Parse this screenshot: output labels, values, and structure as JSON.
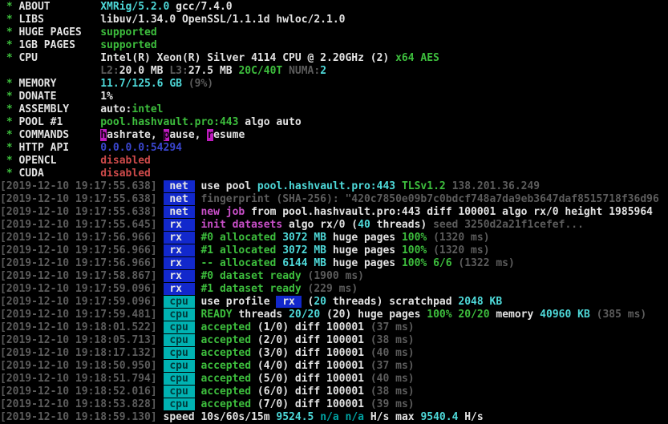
{
  "app_title": "XMRig 5.2.0 miner terminal output",
  "palette": {
    "background": "#000000",
    "white": "#E2E2E2",
    "green": "#3DBE3D",
    "cyan": "#4ED9D9",
    "dim_cyan": "#00A3A3",
    "red": "#CE4A4A",
    "magenta": "#C94FC9",
    "gray": "#5C5C5C",
    "blue": "#3A46CF",
    "hotkey_bg": "#BE1CBE",
    "net_badge_bg": "#1228CC",
    "cpu_badge_bg": "#00B2B2"
  },
  "lines": [
    {
      "name": "header-about",
      "segments": [
        {
          "t": " * ",
          "s": "g",
          "n": "bullet-star"
        },
        {
          "t": "ABOUT        ",
          "s": "w",
          "n": "field-label"
        },
        {
          "t": "XMRig/5.2.0",
          "s": "c"
        },
        {
          "t": " gcc/7.4.0",
          "s": "w"
        }
      ]
    },
    {
      "name": "header-libs",
      "segments": [
        {
          "t": " * ",
          "s": "g",
          "n": "bullet-star"
        },
        {
          "t": "LIBS         ",
          "s": "w",
          "n": "field-label"
        },
        {
          "t": "libuv/1.34.0 OpenSSL/1.1.1d hwloc/2.1.0",
          "s": "w"
        }
      ]
    },
    {
      "name": "header-huge-pages",
      "segments": [
        {
          "t": " * ",
          "s": "g",
          "n": "bullet-star"
        },
        {
          "t": "HUGE PAGES   ",
          "s": "w",
          "n": "field-label"
        },
        {
          "t": "supported",
          "s": "g",
          "n": "status-value"
        }
      ]
    },
    {
      "name": "header-1gb-pages",
      "segments": [
        {
          "t": " * ",
          "s": "g",
          "n": "bullet-star"
        },
        {
          "t": "1GB PAGES    ",
          "s": "w",
          "n": "field-label"
        },
        {
          "t": "supported",
          "s": "g",
          "n": "status-value"
        }
      ]
    },
    {
      "name": "header-cpu",
      "segments": [
        {
          "t": " * ",
          "s": "g",
          "n": "bullet-star"
        },
        {
          "t": "CPU          ",
          "s": "w",
          "n": "field-label"
        },
        {
          "t": "Intel(R) Xeon(R) Silver 4114 CPU @ 2.20GHz (2) ",
          "s": "w"
        },
        {
          "t": "x64 AES",
          "s": "g"
        }
      ]
    },
    {
      "name": "header-cpu-cache",
      "segments": [
        {
          "t": "                ",
          "s": "w"
        },
        {
          "t": "L2:",
          "s": "gray"
        },
        {
          "t": "20.0 MB ",
          "s": "w"
        },
        {
          "t": "L3:",
          "s": "gray"
        },
        {
          "t": "27.5 MB ",
          "s": "w"
        },
        {
          "t": "20C/40T ",
          "s": "g"
        },
        {
          "t": "NUMA:",
          "s": "gray"
        },
        {
          "t": "2",
          "s": "c"
        }
      ]
    },
    {
      "name": "header-memory",
      "segments": [
        {
          "t": " * ",
          "s": "g",
          "n": "bullet-star"
        },
        {
          "t": "MEMORY       ",
          "s": "w",
          "n": "field-label"
        },
        {
          "t": "11.7/125.6 GB ",
          "s": "c"
        },
        {
          "t": "(9%)",
          "s": "gray"
        }
      ]
    },
    {
      "name": "header-donate",
      "segments": [
        {
          "t": " * ",
          "s": "g",
          "n": "bullet-star"
        },
        {
          "t": "DONATE       ",
          "s": "w",
          "n": "field-label"
        },
        {
          "t": "1%",
          "s": "w"
        }
      ]
    },
    {
      "name": "header-assembly",
      "segments": [
        {
          "t": " * ",
          "s": "g",
          "n": "bullet-star"
        },
        {
          "t": "ASSEMBLY     ",
          "s": "w",
          "n": "field-label"
        },
        {
          "t": "auto:",
          "s": "w"
        },
        {
          "t": "intel",
          "s": "g"
        }
      ]
    },
    {
      "name": "header-pool",
      "segments": [
        {
          "t": " * ",
          "s": "g",
          "n": "bullet-star"
        },
        {
          "t": "POOL #1      ",
          "s": "w",
          "n": "field-label"
        },
        {
          "t": "pool.hashvault.pro:443",
          "s": "g",
          "n": "pool-address"
        },
        {
          "t": " algo auto",
          "s": "w"
        }
      ]
    },
    {
      "name": "header-commands",
      "segments": [
        {
          "t": " * ",
          "s": "g",
          "n": "bullet-star"
        },
        {
          "t": "COMMANDS     ",
          "s": "w",
          "n": "field-label"
        },
        {
          "t": "h",
          "s": "hk",
          "n": "hotkey-highlight"
        },
        {
          "t": "ashrate, ",
          "s": "w"
        },
        {
          "t": "p",
          "s": "hk",
          "n": "hotkey-highlight"
        },
        {
          "t": "ause, ",
          "s": "w"
        },
        {
          "t": "r",
          "s": "hk",
          "n": "hotkey-highlight"
        },
        {
          "t": "esume",
          "s": "w"
        }
      ]
    },
    {
      "name": "header-http-api",
      "segments": [
        {
          "t": " * ",
          "s": "g",
          "n": "bullet-star"
        },
        {
          "t": "HTTP API     ",
          "s": "w",
          "n": "field-label"
        },
        {
          "t": "0.0.0.0:54294",
          "s": "blue",
          "n": "api-address"
        }
      ]
    },
    {
      "name": "header-opencl",
      "segments": [
        {
          "t": " * ",
          "s": "g",
          "n": "bullet-star"
        },
        {
          "t": "OPENCL       ",
          "s": "w",
          "n": "field-label"
        },
        {
          "t": "disabled",
          "s": "r",
          "n": "status-value"
        }
      ]
    },
    {
      "name": "header-cuda",
      "segments": [
        {
          "t": " * ",
          "s": "g",
          "n": "bullet-star"
        },
        {
          "t": "CUDA         ",
          "s": "w",
          "n": "field-label"
        },
        {
          "t": "disabled",
          "s": "r",
          "n": "status-value"
        }
      ]
    },
    {
      "name": "log-use-pool",
      "segments": [
        {
          "t": "[2019-12-10 19:17:55.638]",
          "s": "gray",
          "n": "timestamp"
        },
        {
          "t": " ",
          "s": "w"
        },
        {
          "t": " net ",
          "s": "bnet",
          "n": "net-badge"
        },
        {
          "t": " ",
          "s": "w"
        },
        {
          "t": "use pool ",
          "s": "w"
        },
        {
          "t": "pool.hashvault.pro:443 ",
          "s": "c",
          "n": "pool-address"
        },
        {
          "t": "TLSv1.2 ",
          "s": "g"
        },
        {
          "t": "138.201.36.249",
          "s": "gray",
          "n": "pool-ip"
        }
      ]
    },
    {
      "name": "log-fingerprint",
      "segments": [
        {
          "t": "[2019-12-10 19:17:55.638]",
          "s": "gray",
          "n": "timestamp"
        },
        {
          "t": " ",
          "s": "w"
        },
        {
          "t": " net ",
          "s": "bnet",
          "n": "net-badge"
        },
        {
          "t": " ",
          "s": "w"
        },
        {
          "t": "fingerprint (SHA-256): \"420c7850e09b7c0bdcf748a7da9eb3647daf8515718f36d96",
          "s": "gray",
          "n": "tls-fingerprint"
        }
      ]
    },
    {
      "name": "log-new-job",
      "segments": [
        {
          "t": "[2019-12-10 19:17:55.638]",
          "s": "gray",
          "n": "timestamp"
        },
        {
          "t": " ",
          "s": "w"
        },
        {
          "t": " net ",
          "s": "bnet",
          "n": "net-badge"
        },
        {
          "t": " ",
          "s": "w"
        },
        {
          "t": "new job",
          "s": "m"
        },
        {
          "t": " from pool.hashvault.pro:443 diff 100001 algo rx/0 height 1985964",
          "s": "w"
        }
      ]
    },
    {
      "name": "log-init-datasets",
      "segments": [
        {
          "t": "[2019-12-10 19:17:55.645]",
          "s": "gray",
          "n": "timestamp"
        },
        {
          "t": " ",
          "s": "w"
        },
        {
          "t": " rx  ",
          "s": "bnet",
          "n": "rx-badge"
        },
        {
          "t": " ",
          "s": "w"
        },
        {
          "t": "init datasets",
          "s": "m"
        },
        {
          "t": " algo rx/0 (",
          "s": "w"
        },
        {
          "t": "40",
          "s": "c"
        },
        {
          "t": " threads) ",
          "s": "w"
        },
        {
          "t": "seed 3250d2a21f1cefef...",
          "s": "gray",
          "n": "seed-value"
        }
      ]
    },
    {
      "name": "log-allocated-0",
      "segments": [
        {
          "t": "[2019-12-10 19:17:56.966]",
          "s": "gray",
          "n": "timestamp"
        },
        {
          "t": " ",
          "s": "w"
        },
        {
          "t": " rx  ",
          "s": "bnet",
          "n": "rx-badge"
        },
        {
          "t": " ",
          "s": "w"
        },
        {
          "t": "#0 allocated ",
          "s": "g"
        },
        {
          "t": "3072 MB",
          "s": "c"
        },
        {
          "t": " huge pages ",
          "s": "w"
        },
        {
          "t": "100% ",
          "s": "g"
        },
        {
          "t": "(1320 ms)",
          "s": "gray"
        }
      ]
    },
    {
      "name": "log-allocated-1",
      "segments": [
        {
          "t": "[2019-12-10 19:17:56.966]",
          "s": "gray",
          "n": "timestamp"
        },
        {
          "t": " ",
          "s": "w"
        },
        {
          "t": " rx  ",
          "s": "bnet",
          "n": "rx-badge"
        },
        {
          "t": " ",
          "s": "w"
        },
        {
          "t": "#1 allocated ",
          "s": "g"
        },
        {
          "t": "3072 MB",
          "s": "c"
        },
        {
          "t": " huge pages ",
          "s": "w"
        },
        {
          "t": "100% ",
          "s": "g"
        },
        {
          "t": "(1320 ms)",
          "s": "gray"
        }
      ]
    },
    {
      "name": "log-allocated-total",
      "segments": [
        {
          "t": "[2019-12-10 19:17:56.966]",
          "s": "gray",
          "n": "timestamp"
        },
        {
          "t": " ",
          "s": "w"
        },
        {
          "t": " rx  ",
          "s": "bnet",
          "n": "rx-badge"
        },
        {
          "t": " ",
          "s": "w"
        },
        {
          "t": "-- allocated ",
          "s": "g"
        },
        {
          "t": "6144 MB",
          "s": "c"
        },
        {
          "t": " huge pages ",
          "s": "w"
        },
        {
          "t": "100% 6/6 ",
          "s": "g"
        },
        {
          "t": "(1322 ms)",
          "s": "gray"
        }
      ]
    },
    {
      "name": "log-dataset-ready-0",
      "segments": [
        {
          "t": "[2019-12-10 19:17:58.867]",
          "s": "gray",
          "n": "timestamp"
        },
        {
          "t": " ",
          "s": "w"
        },
        {
          "t": " rx  ",
          "s": "bnet",
          "n": "rx-badge"
        },
        {
          "t": " ",
          "s": "w"
        },
        {
          "t": "#0 dataset ready ",
          "s": "g"
        },
        {
          "t": "(1900 ms)",
          "s": "gray"
        }
      ]
    },
    {
      "name": "log-dataset-ready-1",
      "segments": [
        {
          "t": "[2019-12-10 19:17:59.096]",
          "s": "gray",
          "n": "timestamp"
        },
        {
          "t": " ",
          "s": "w"
        },
        {
          "t": " rx  ",
          "s": "bnet",
          "n": "rx-badge"
        },
        {
          "t": " ",
          "s": "w"
        },
        {
          "t": "#1 dataset ready ",
          "s": "g"
        },
        {
          "t": "(229 ms)",
          "s": "gray"
        }
      ]
    },
    {
      "name": "log-use-profile",
      "segments": [
        {
          "t": "[2019-12-10 19:17:59.096]",
          "s": "gray",
          "n": "timestamp"
        },
        {
          "t": " ",
          "s": "w"
        },
        {
          "t": " cpu ",
          "s": "bcpu",
          "n": "cpu-badge"
        },
        {
          "t": " ",
          "s": "w"
        },
        {
          "t": "use profile ",
          "s": "w"
        },
        {
          "t": " rx ",
          "s": "brx",
          "n": "rx-profile-badge"
        },
        {
          "t": " (",
          "s": "w"
        },
        {
          "t": "20",
          "s": "c"
        },
        {
          "t": " threads) scratchpad ",
          "s": "w"
        },
        {
          "t": "2048 KB",
          "s": "c"
        }
      ]
    },
    {
      "name": "log-ready-threads",
      "segments": [
        {
          "t": "[2019-12-10 19:17:59.481]",
          "s": "gray",
          "n": "timestamp"
        },
        {
          "t": " ",
          "s": "w"
        },
        {
          "t": " cpu ",
          "s": "bcpu",
          "n": "cpu-badge"
        },
        {
          "t": " ",
          "s": "w"
        },
        {
          "t": "READY",
          "s": "g"
        },
        {
          "t": " threads ",
          "s": "w"
        },
        {
          "t": "20/20",
          "s": "c"
        },
        {
          "t": " (20) huge pages ",
          "s": "w"
        },
        {
          "t": "100% 20/20",
          "s": "g"
        },
        {
          "t": " memory ",
          "s": "w"
        },
        {
          "t": "40960 KB",
          "s": "c"
        },
        {
          "t": " ",
          "s": "w"
        },
        {
          "t": "(385 ms)",
          "s": "gray"
        }
      ]
    },
    {
      "name": "log-accepted-1",
      "segments": [
        {
          "t": "[2019-12-10 19:18:01.522]",
          "s": "gray",
          "n": "timestamp"
        },
        {
          "t": " ",
          "s": "w"
        },
        {
          "t": " cpu ",
          "s": "bcpu",
          "n": "cpu-badge"
        },
        {
          "t": " ",
          "s": "w"
        },
        {
          "t": "accepted",
          "s": "g"
        },
        {
          "t": " (1/0) diff 100001 ",
          "s": "w"
        },
        {
          "t": "(37 ms)",
          "s": "gray"
        }
      ]
    },
    {
      "name": "log-accepted-2",
      "segments": [
        {
          "t": "[2019-12-10 19:18:05.713]",
          "s": "gray",
          "n": "timestamp"
        },
        {
          "t": " ",
          "s": "w"
        },
        {
          "t": " cpu ",
          "s": "bcpu",
          "n": "cpu-badge"
        },
        {
          "t": " ",
          "s": "w"
        },
        {
          "t": "accepted",
          "s": "g"
        },
        {
          "t": " (2/0) diff 100001 ",
          "s": "w"
        },
        {
          "t": "(38 ms)",
          "s": "gray"
        }
      ]
    },
    {
      "name": "log-accepted-3",
      "segments": [
        {
          "t": "[2019-12-10 19:18:17.132]",
          "s": "gray",
          "n": "timestamp"
        },
        {
          "t": " ",
          "s": "w"
        },
        {
          "t": " cpu ",
          "s": "bcpu",
          "n": "cpu-badge"
        },
        {
          "t": " ",
          "s": "w"
        },
        {
          "t": "accepted",
          "s": "g"
        },
        {
          "t": " (3/0) diff 100001 ",
          "s": "w"
        },
        {
          "t": "(40 ms)",
          "s": "gray"
        }
      ]
    },
    {
      "name": "log-accepted-4",
      "segments": [
        {
          "t": "[2019-12-10 19:18:50.950]",
          "s": "gray",
          "n": "timestamp"
        },
        {
          "t": " ",
          "s": "w"
        },
        {
          "t": " cpu ",
          "s": "bcpu",
          "n": "cpu-badge"
        },
        {
          "t": " ",
          "s": "w"
        },
        {
          "t": "accepted",
          "s": "g"
        },
        {
          "t": " (4/0) diff 100001 ",
          "s": "w"
        },
        {
          "t": "(37 ms)",
          "s": "gray"
        }
      ]
    },
    {
      "name": "log-accepted-5",
      "segments": [
        {
          "t": "[2019-12-10 19:18:51.794]",
          "s": "gray",
          "n": "timestamp"
        },
        {
          "t": " ",
          "s": "w"
        },
        {
          "t": " cpu ",
          "s": "bcpu",
          "n": "cpu-badge"
        },
        {
          "t": " ",
          "s": "w"
        },
        {
          "t": "accepted",
          "s": "g"
        },
        {
          "t": " (5/0) diff 100001 ",
          "s": "w"
        },
        {
          "t": "(40 ms)",
          "s": "gray"
        }
      ]
    },
    {
      "name": "log-accepted-6",
      "segments": [
        {
          "t": "[2019-12-10 19:18:52.016]",
          "s": "gray",
          "n": "timestamp"
        },
        {
          "t": " ",
          "s": "w"
        },
        {
          "t": " cpu ",
          "s": "bcpu",
          "n": "cpu-badge"
        },
        {
          "t": " ",
          "s": "w"
        },
        {
          "t": "accepted",
          "s": "g"
        },
        {
          "t": " (6/0) diff 100001 ",
          "s": "w"
        },
        {
          "t": "(38 ms)",
          "s": "gray"
        }
      ]
    },
    {
      "name": "log-accepted-7",
      "segments": [
        {
          "t": "[2019-12-10 19:18:53.828]",
          "s": "gray",
          "n": "timestamp"
        },
        {
          "t": " ",
          "s": "w"
        },
        {
          "t": " cpu ",
          "s": "bcpu",
          "n": "cpu-badge"
        },
        {
          "t": " ",
          "s": "w"
        },
        {
          "t": "accepted",
          "s": "g"
        },
        {
          "t": " (7/0) diff 100001 ",
          "s": "w"
        },
        {
          "t": "(39 ms)",
          "s": "gray"
        }
      ]
    },
    {
      "name": "log-speed",
      "segments": [
        {
          "t": "[2019-12-10 19:18:59.130]",
          "s": "gray",
          "n": "timestamp"
        },
        {
          "t": " speed 10s/60s/15m ",
          "s": "w"
        },
        {
          "t": "9524.5 ",
          "s": "c",
          "n": "hashrate-10s"
        },
        {
          "t": "n/a n/a ",
          "s": "c2"
        },
        {
          "t": "H/s max ",
          "s": "w"
        },
        {
          "t": "9540.4 ",
          "s": "c",
          "n": "hashrate-max"
        },
        {
          "t": "H/s",
          "s": "w"
        }
      ]
    }
  ]
}
